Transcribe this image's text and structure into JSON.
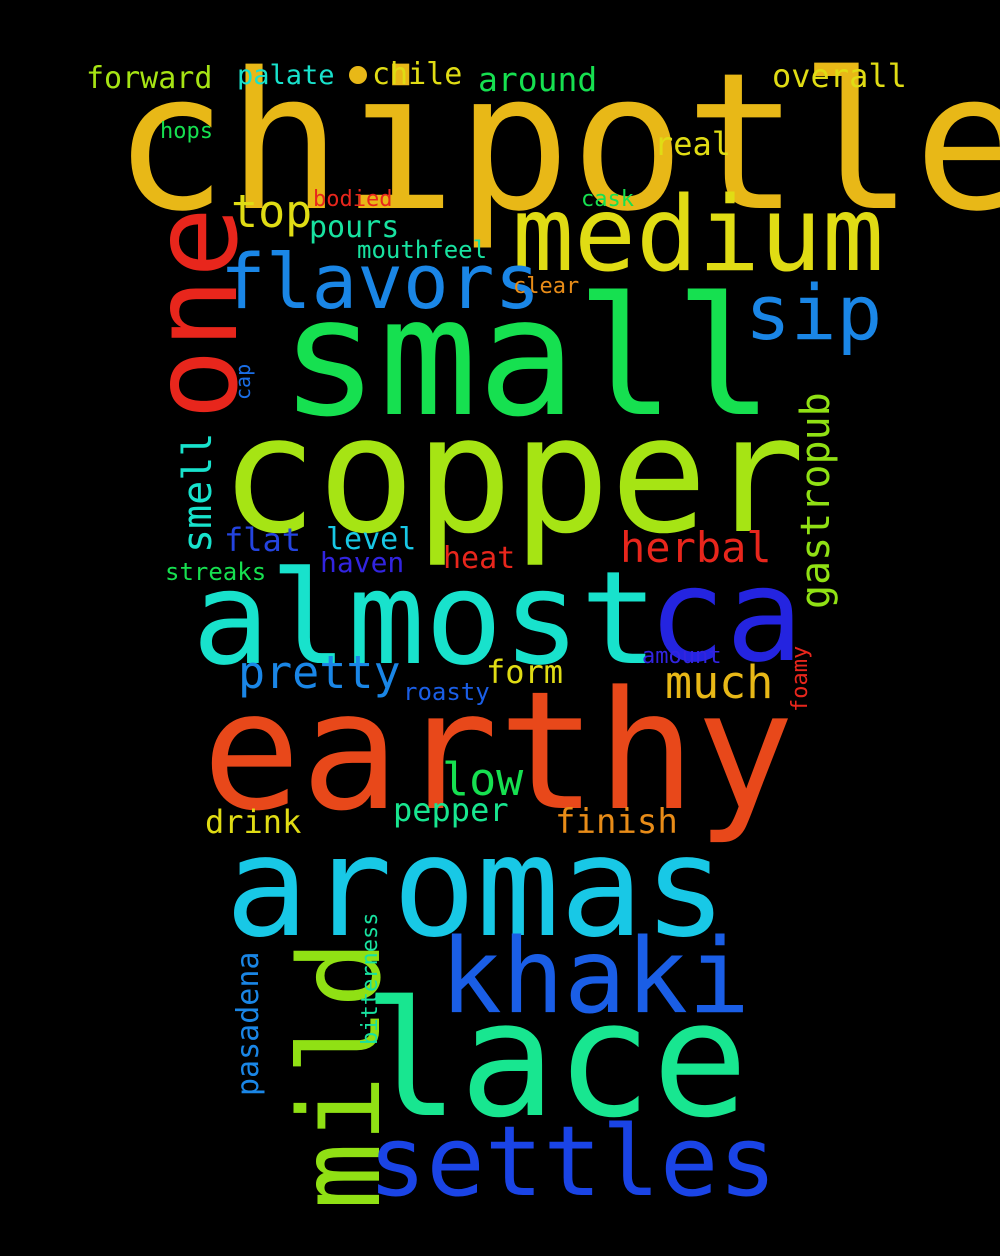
{
  "background": "#000000",
  "words": [
    {
      "text": "chipotle",
      "color": "#e8b817"
    },
    {
      "text": "one",
      "color": "#e8261c"
    },
    {
      "text": "medium",
      "color": "#e0dc14"
    },
    {
      "text": "small",
      "color": "#16e050"
    },
    {
      "text": "copper",
      "color": "#a6e414"
    },
    {
      "text": "flavors",
      "color": "#1a86e6"
    },
    {
      "text": "sip",
      "color": "#1a86e6"
    },
    {
      "text": "almost",
      "color": "#18e2cc"
    },
    {
      "text": "ca",
      "color": "#2424e0"
    },
    {
      "text": "earthy",
      "color": "#e8481a"
    },
    {
      "text": "aromas",
      "color": "#18c8e6"
    },
    {
      "text": "khaki",
      "color": "#1a5ee6"
    },
    {
      "text": "lace",
      "color": "#18e690"
    },
    {
      "text": "mild",
      "color": "#90e014"
    },
    {
      "text": "settles",
      "color": "#1a44e6"
    },
    {
      "text": "forward",
      "color": "#a6e414"
    },
    {
      "text": "palate",
      "color": "#18e2cc"
    },
    {
      "text": "chile",
      "color": "#e0dc14"
    },
    {
      "text": "around",
      "color": "#16e050"
    },
    {
      "text": "overall",
      "color": "#e0dc14"
    },
    {
      "text": "hops",
      "color": "#16e050"
    },
    {
      "text": "real",
      "color": "#e0dc14"
    },
    {
      "text": "bodied",
      "color": "#e8261c"
    },
    {
      "text": "cask",
      "color": "#16e050"
    },
    {
      "text": "top",
      "color": "#e0dc14"
    },
    {
      "text": "pours",
      "color": "#18e2a0"
    },
    {
      "text": "mouthfeel",
      "color": "#18e2a0"
    },
    {
      "text": "clear",
      "color": "#e88c18"
    },
    {
      "text": "cap",
      "color": "#1a6ee6"
    },
    {
      "text": "smell",
      "color": "#18e2cc"
    },
    {
      "text": "gastropub",
      "color": "#90e014"
    },
    {
      "text": "herbal",
      "color": "#e8261c"
    },
    {
      "text": "flat",
      "color": "#2444e0"
    },
    {
      "text": "level",
      "color": "#18c8e6"
    },
    {
      "text": "haven",
      "color": "#3224e0"
    },
    {
      "text": "heat",
      "color": "#e8261c"
    },
    {
      "text": "streaks",
      "color": "#16e050"
    },
    {
      "text": "pretty",
      "color": "#1a86e6"
    },
    {
      "text": "form",
      "color": "#e0dc14"
    },
    {
      "text": "amount",
      "color": "#3224e0"
    },
    {
      "text": "much",
      "color": "#e8b817"
    },
    {
      "text": "roasty",
      "color": "#1a5ee6"
    },
    {
      "text": "foamy",
      "color": "#e8261c"
    },
    {
      "text": "low",
      "color": "#16e050"
    },
    {
      "text": "drink",
      "color": "#e0dc14"
    },
    {
      "text": "pepper",
      "color": "#18e690"
    },
    {
      "text": "finish",
      "color": "#e88c18"
    },
    {
      "text": "pasadena",
      "color": "#1a86e6"
    },
    {
      "text": "bitterness",
      "color": "#18e2a0"
    }
  ],
  "dot_color": "#e8b817"
}
